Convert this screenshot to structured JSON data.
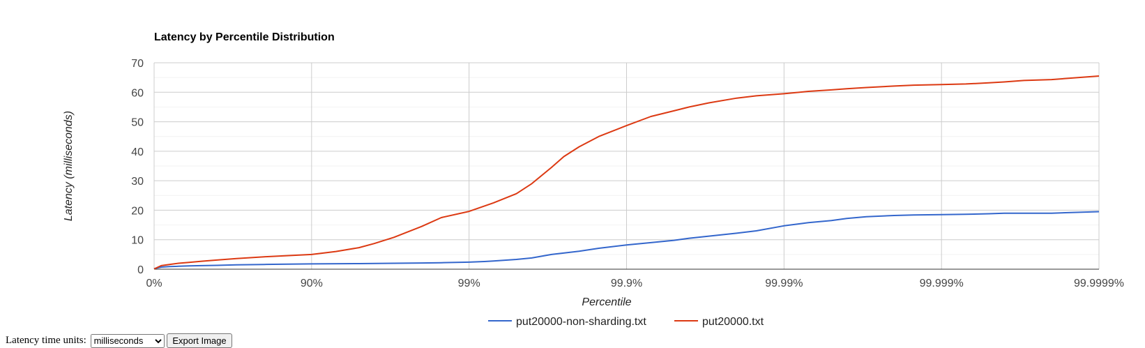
{
  "chart_data": {
    "type": "line",
    "title": "Latency by Percentile Distribution",
    "xlabel": "Percentile",
    "ylabel": "Latency (milliseconds)",
    "ylim": [
      0,
      70
    ],
    "yticks": [
      "0",
      "10",
      "20",
      "30",
      "40",
      "50",
      "60",
      "70"
    ],
    "xticks": [
      "0%",
      "90%",
      "99%",
      "99.9%",
      "99.99%",
      "99.999%",
      "99.9999%"
    ],
    "xscale": "log-nines",
    "grid": true,
    "legend": "bottom",
    "series": [
      {
        "name": "put20000-non-sharding.txt",
        "color": "#3366cc",
        "points": [
          [
            0,
            0.2
          ],
          [
            10,
            0.7
          ],
          [
            20,
            0.9
          ],
          [
            30,
            1.0
          ],
          [
            40,
            1.1
          ],
          [
            50,
            1.2
          ],
          [
            60,
            1.3
          ],
          [
            70,
            1.5
          ],
          [
            80,
            1.6
          ],
          [
            90,
            1.8
          ],
          [
            95,
            1.9
          ],
          [
            97,
            2.0
          ],
          [
            98,
            2.1
          ],
          [
            98.5,
            2.2
          ],
          [
            99,
            2.4
          ],
          [
            99.2,
            2.6
          ],
          [
            99.3,
            2.8
          ],
          [
            99.5,
            3.3
          ],
          [
            99.6,
            3.8
          ],
          [
            99.7,
            5.0
          ],
          [
            99.8,
            6.1
          ],
          [
            99.85,
            7.1
          ],
          [
            99.9,
            8.2
          ],
          [
            99.93,
            9.0
          ],
          [
            99.95,
            9.8
          ],
          [
            99.96,
            10.5
          ],
          [
            99.97,
            11.2
          ],
          [
            99.98,
            12.2
          ],
          [
            99.985,
            13.0
          ],
          [
            99.99,
            14.7
          ],
          [
            99.993,
            15.8
          ],
          [
            99.995,
            16.5
          ],
          [
            99.996,
            17.2
          ],
          [
            99.997,
            17.8
          ],
          [
            99.998,
            18.2
          ],
          [
            99.9985,
            18.4
          ],
          [
            99.999,
            18.5
          ],
          [
            99.9993,
            18.6
          ],
          [
            99.9995,
            18.8
          ],
          [
            99.9996,
            19.0
          ],
          [
            99.9997,
            19.0
          ],
          [
            99.9998,
            19.0
          ],
          [
            99.9999,
            19.5
          ]
        ]
      },
      {
        "name": "put20000.txt",
        "color": "#dc3912",
        "points": [
          [
            0,
            0.1
          ],
          [
            10,
            1.2
          ],
          [
            20,
            1.6
          ],
          [
            30,
            2.0
          ],
          [
            40,
            2.3
          ],
          [
            50,
            2.7
          ],
          [
            60,
            3.1
          ],
          [
            70,
            3.6
          ],
          [
            80,
            4.2
          ],
          [
            90,
            5.0
          ],
          [
            93,
            6.0
          ],
          [
            95,
            7.3
          ],
          [
            96,
            8.7
          ],
          [
            97,
            10.8
          ],
          [
            98,
            14.5
          ],
          [
            98.5,
            17.5
          ],
          [
            99,
            19.6
          ],
          [
            99.3,
            22.5
          ],
          [
            99.5,
            25.6
          ],
          [
            99.6,
            29.0
          ],
          [
            99.7,
            34.5
          ],
          [
            99.75,
            38.2
          ],
          [
            99.8,
            41.5
          ],
          [
            99.85,
            45.0
          ],
          [
            99.9,
            48.7
          ],
          [
            99.93,
            51.8
          ],
          [
            99.95,
            53.7
          ],
          [
            99.96,
            55.0
          ],
          [
            99.97,
            56.4
          ],
          [
            99.98,
            58.0
          ],
          [
            99.985,
            58.8
          ],
          [
            99.99,
            59.5
          ],
          [
            99.993,
            60.3
          ],
          [
            99.995,
            60.8
          ],
          [
            99.996,
            61.2
          ],
          [
            99.997,
            61.6
          ],
          [
            99.998,
            62.1
          ],
          [
            99.9985,
            62.4
          ],
          [
            99.999,
            62.6
          ],
          [
            99.9993,
            62.8
          ],
          [
            99.9995,
            63.2
          ],
          [
            99.9996,
            63.5
          ],
          [
            99.9997,
            64.0
          ],
          [
            99.9998,
            64.3
          ],
          [
            99.9999,
            65.5
          ]
        ]
      }
    ]
  },
  "controls": {
    "units_label": "Latency time units:",
    "units_value": "milliseconds",
    "units_options": [
      "milliseconds"
    ],
    "export_label": "Export Image"
  }
}
